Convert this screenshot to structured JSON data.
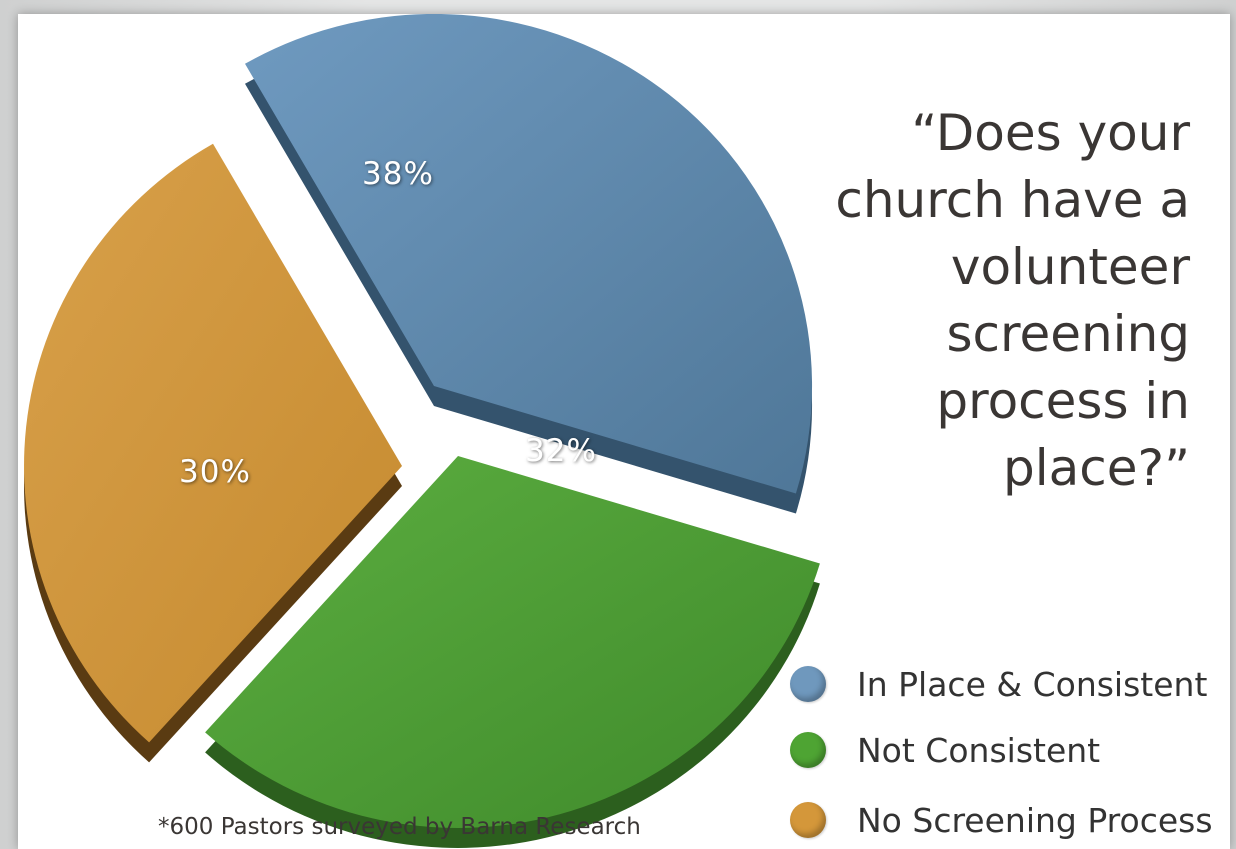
{
  "chart_data": {
    "type": "pie",
    "title": [
      "“Does your",
      "church have a",
      "volunteer",
      "screening",
      "process in",
      "place?”"
    ],
    "slices": [
      {
        "label": "In Place & Consistent",
        "value": 38,
        "display": "38%",
        "color": "#5b86a8"
      },
      {
        "label": "Not Consistent",
        "value": 32,
        "display": "32%",
        "color": "#4d9a35"
      },
      {
        "label": "No Screening Process",
        "value": 30,
        "display": "30%",
        "color": "#d49a3c"
      }
    ],
    "legend_position": "bottom-right",
    "footnote": "*600 Pastors surveyed by Barna Research"
  }
}
